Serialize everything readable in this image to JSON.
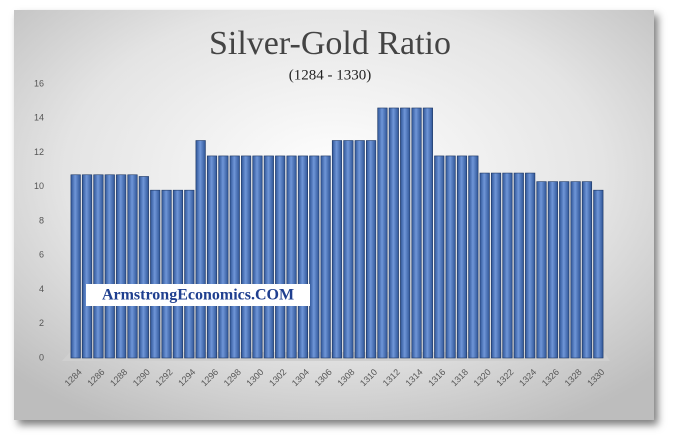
{
  "chart_data": {
    "type": "bar",
    "title": "Silver-Gold Ratio",
    "subtitle": "(1284 - 1330)",
    "annotation": "ArmstrongEconomics.COM",
    "categories": [
      "1284",
      null,
      "1286",
      null,
      "1288",
      null,
      "1290",
      null,
      "1292",
      null,
      "1294",
      null,
      "1296",
      null,
      "1298",
      null,
      "1300",
      null,
      "1302",
      null,
      "1304",
      null,
      "1306",
      null,
      "1308",
      null,
      "1310",
      null,
      "1312",
      null,
      "1314",
      null,
      "1316",
      null,
      "1318",
      null,
      "1320",
      null,
      "1322",
      null,
      "1324",
      null,
      "1326",
      null,
      "1328",
      null,
      "1330"
    ],
    "values": [
      10.7,
      10.7,
      10.7,
      10.7,
      10.7,
      10.7,
      10.6,
      9.8,
      9.8,
      9.8,
      9.8,
      12.7,
      11.8,
      11.8,
      11.8,
      11.8,
      11.8,
      11.8,
      11.8,
      11.8,
      11.8,
      11.8,
      11.8,
      12.7,
      12.7,
      12.7,
      12.7,
      14.6,
      14.6,
      14.6,
      14.6,
      14.6,
      11.8,
      11.8,
      11.8,
      11.8,
      10.8,
      10.8,
      10.8,
      10.8,
      10.8,
      10.3,
      10.3,
      10.3,
      10.3,
      10.3,
      9.8
    ],
    "color": "#4472c4",
    "ylim": [
      0,
      16
    ],
    "yticks": [
      0,
      2,
      4,
      6,
      8,
      10,
      12,
      14,
      16
    ],
    "grid": false
  }
}
